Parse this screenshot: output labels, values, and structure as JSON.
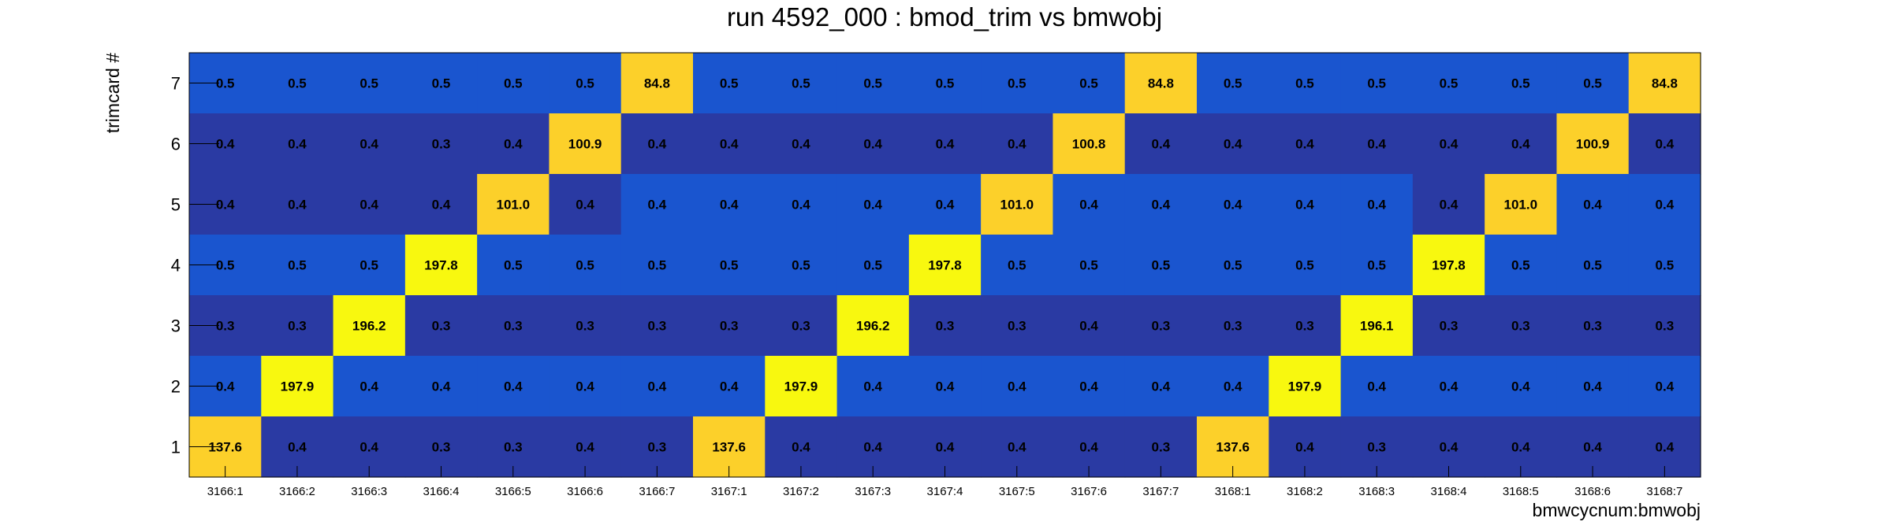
{
  "chart_data": {
    "type": "heatmap",
    "title": "run 4592_000 : bmod_trim vs bmwobj",
    "xlabel": "bmwcycnum:bmwobj",
    "ylabel": "trimcard #",
    "x_categories": [
      "3166:1",
      "3166:2",
      "3166:3",
      "3166:4",
      "3166:5",
      "3166:6",
      "3166:7",
      "3167:1",
      "3167:2",
      "3167:3",
      "3167:4",
      "3167:5",
      "3167:6",
      "3167:7",
      "3168:1",
      "3168:2",
      "3168:3",
      "3168:4",
      "3168:5",
      "3168:6",
      "3168:7"
    ],
    "y_categories": [
      "1",
      "2",
      "3",
      "4",
      "5",
      "6",
      "7"
    ],
    "rows": [
      {
        "y": "7",
        "values": [
          "0.5",
          "0.5",
          "0.5",
          "0.5",
          "0.5",
          "0.5",
          "84.8",
          "0.5",
          "0.5",
          "0.5",
          "0.5",
          "0.5",
          "0.5",
          "84.8",
          "0.5",
          "0.5",
          "0.5",
          "0.5",
          "0.5",
          "0.5",
          "84.8"
        ]
      },
      {
        "y": "6",
        "values": [
          "0.4",
          "0.4",
          "0.4",
          "0.3",
          "0.4",
          "100.9",
          "0.4",
          "0.4",
          "0.4",
          "0.4",
          "0.4",
          "0.4",
          "100.8",
          "0.4",
          "0.4",
          "0.4",
          "0.4",
          "0.4",
          "0.4",
          "100.9",
          "0.4"
        ]
      },
      {
        "y": "5",
        "values": [
          "0.4",
          "0.4",
          "0.4",
          "0.4",
          "101.0",
          "0.4",
          "0.4",
          "0.4",
          "0.4",
          "0.4",
          "0.4",
          "101.0",
          "0.4",
          "0.4",
          "0.4",
          "0.4",
          "0.4",
          "0.4",
          "101.0",
          "0.4",
          "0.4"
        ]
      },
      {
        "y": "4",
        "values": [
          "0.5",
          "0.5",
          "0.5",
          "197.8",
          "0.5",
          "0.5",
          "0.5",
          "0.5",
          "0.5",
          "0.5",
          "197.8",
          "0.5",
          "0.5",
          "0.5",
          "0.5",
          "0.5",
          "0.5",
          "197.8",
          "0.5",
          "0.5",
          "0.5"
        ]
      },
      {
        "y": "3",
        "values": [
          "0.3",
          "0.3",
          "196.2",
          "0.3",
          "0.3",
          "0.3",
          "0.3",
          "0.3",
          "0.3",
          "196.2",
          "0.3",
          "0.3",
          "0.4",
          "0.3",
          "0.3",
          "0.3",
          "196.1",
          "0.3",
          "0.3",
          "0.3",
          "0.3"
        ]
      },
      {
        "y": "2",
        "values": [
          "0.4",
          "197.9",
          "0.4",
          "0.4",
          "0.4",
          "0.4",
          "0.4",
          "0.4",
          "197.9",
          "0.4",
          "0.4",
          "0.4",
          "0.4",
          "0.4",
          "0.4",
          "197.9",
          "0.4",
          "0.4",
          "0.4",
          "0.4",
          "0.4"
        ]
      },
      {
        "y": "1",
        "values": [
          "137.6",
          "0.4",
          "0.4",
          "0.3",
          "0.3",
          "0.4",
          "0.3",
          "137.6",
          "0.4",
          "0.4",
          "0.4",
          "0.4",
          "0.4",
          "0.3",
          "137.6",
          "0.4",
          "0.3",
          "0.4",
          "0.4",
          "0.4",
          "0.4"
        ]
      }
    ],
    "colors": {
      "dark_blue": "#2a3aa3",
      "mid_blue": "#1a55cf",
      "orange_yellow": "#fcd02a",
      "yellow": "#f8f80f"
    },
    "grid": false,
    "legend": "none"
  }
}
